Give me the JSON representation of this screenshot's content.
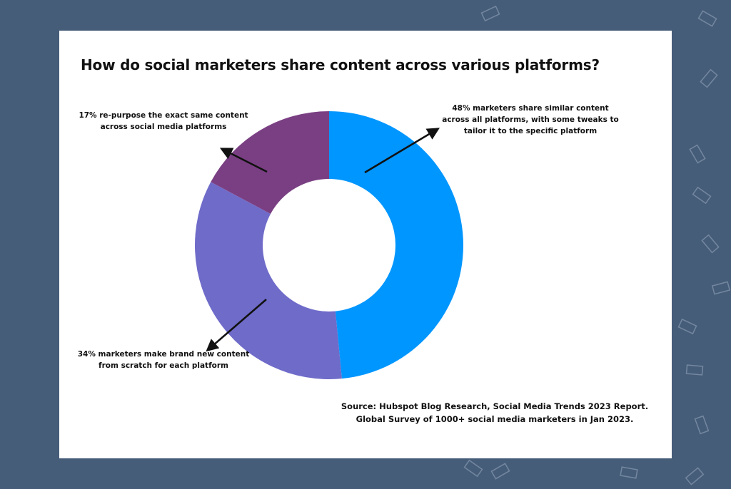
{
  "chart_data": {
    "type": "pie",
    "title": "How do social marketers share content across various platforms?",
    "categories": [
      "share similar content across all platforms, with some tweaks",
      "make brand new content from scratch for each platform",
      "re-purpose the exact same content across social media platforms"
    ],
    "values": [
      48,
      34,
      17
    ],
    "unit": "%",
    "colors": [
      "#0096ff",
      "#6f6bc9",
      "#7a3f83"
    ],
    "donut": true,
    "annotations": [
      "48% marketers share similar content\nacross all platforms, with some tweaks to\ntailor it to the specific platform",
      "17% re-purpose the exact same content\nacross social media platforms",
      "34% marketers make brand new content\nfrom scratch for each platform"
    ],
    "source": "Source: Hubspot Blog Research, Social Media Trends 2023 Report.\nGlobal Survey of 1000+ social media marketers in Jan 2023."
  },
  "colors": {
    "page_background": "#465d79",
    "card_background": "#ffffff",
    "arrow": "#111111"
  }
}
